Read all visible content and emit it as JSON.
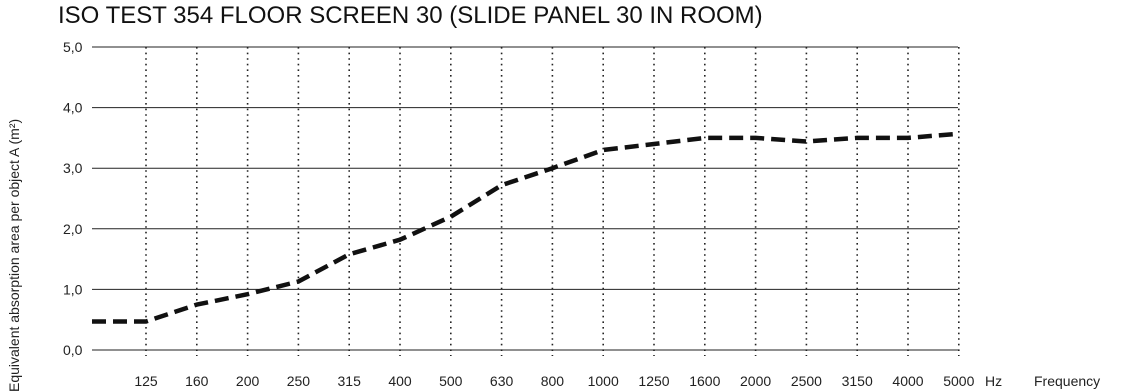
{
  "chart_data": {
    "type": "line",
    "title": "ISO TEST 354 FLOOR SCREEN 30 (SLIDE PANEL 30 IN ROOM)",
    "ylabel": "Equivalent absorption area per object  A (m²)",
    "x_unit": "Hz",
    "xlabel": "Frequency",
    "ylim": [
      0,
      5
    ],
    "yticks": [
      "0,0",
      "1,0",
      "2,0",
      "3,0",
      "4,0",
      "5,0"
    ],
    "categories": [
      "125",
      "160",
      "200",
      "250",
      "315",
      "400",
      "500",
      "630",
      "800",
      "1000",
      "1250",
      "1600",
      "2000",
      "2500",
      "3150",
      "4000",
      "5000"
    ],
    "series": [
      {
        "values": [
          0.47,
          0.75,
          0.92,
          1.13,
          1.58,
          1.82,
          2.2,
          2.72,
          3.0,
          3.3,
          3.4,
          3.5,
          3.5,
          3.44,
          3.5,
          3.5,
          3.57
        ],
        "color": "#111111",
        "style": "dashed"
      }
    ],
    "line_start_value": 0.47,
    "grid": {
      "horizontal": "solid",
      "vertical": "dotted"
    },
    "legend": "none"
  }
}
